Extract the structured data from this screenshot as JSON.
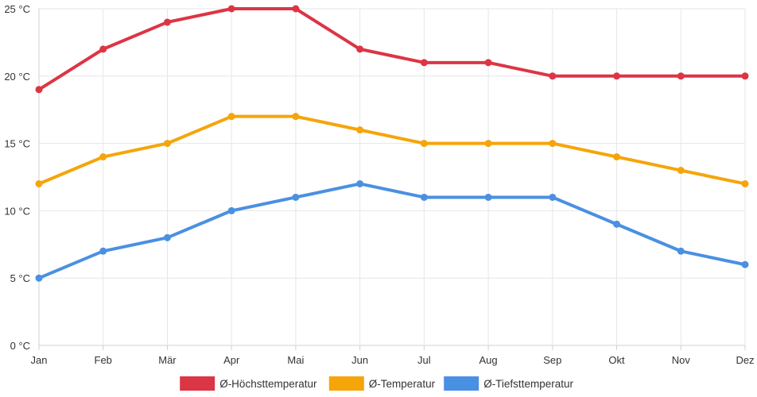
{
  "chart_data": {
    "type": "line",
    "categories": [
      "Jan",
      "Feb",
      "Mär",
      "Apr",
      "Mai",
      "Jun",
      "Jul",
      "Aug",
      "Sep",
      "Okt",
      "Nov",
      "Dez"
    ],
    "y_ticks": [
      "0 °C",
      "5 °C",
      "10 °C",
      "15 °C",
      "20 °C",
      "25 °C"
    ],
    "ylim": [
      0,
      25
    ],
    "y_tick_values": [
      0,
      5,
      10,
      15,
      20,
      25
    ],
    "grid": true,
    "legend_position": "bottom",
    "series": [
      {
        "name": "Ø-Höchsttemperatur",
        "color": "#dc3545",
        "values": [
          19,
          22,
          24,
          25,
          25,
          22,
          21,
          21,
          20,
          20,
          20,
          20
        ]
      },
      {
        "name": "Ø-Temperatur",
        "color": "#f5a50a",
        "values": [
          12,
          14,
          15,
          17,
          17,
          16,
          15,
          15,
          15,
          14,
          13,
          12
        ]
      },
      {
        "name": "Ø-Tiefsttemperatur",
        "color": "#4a90e2",
        "values": [
          5,
          7,
          8,
          10,
          11,
          12,
          11,
          11,
          11,
          9,
          7,
          6
        ]
      }
    ]
  }
}
